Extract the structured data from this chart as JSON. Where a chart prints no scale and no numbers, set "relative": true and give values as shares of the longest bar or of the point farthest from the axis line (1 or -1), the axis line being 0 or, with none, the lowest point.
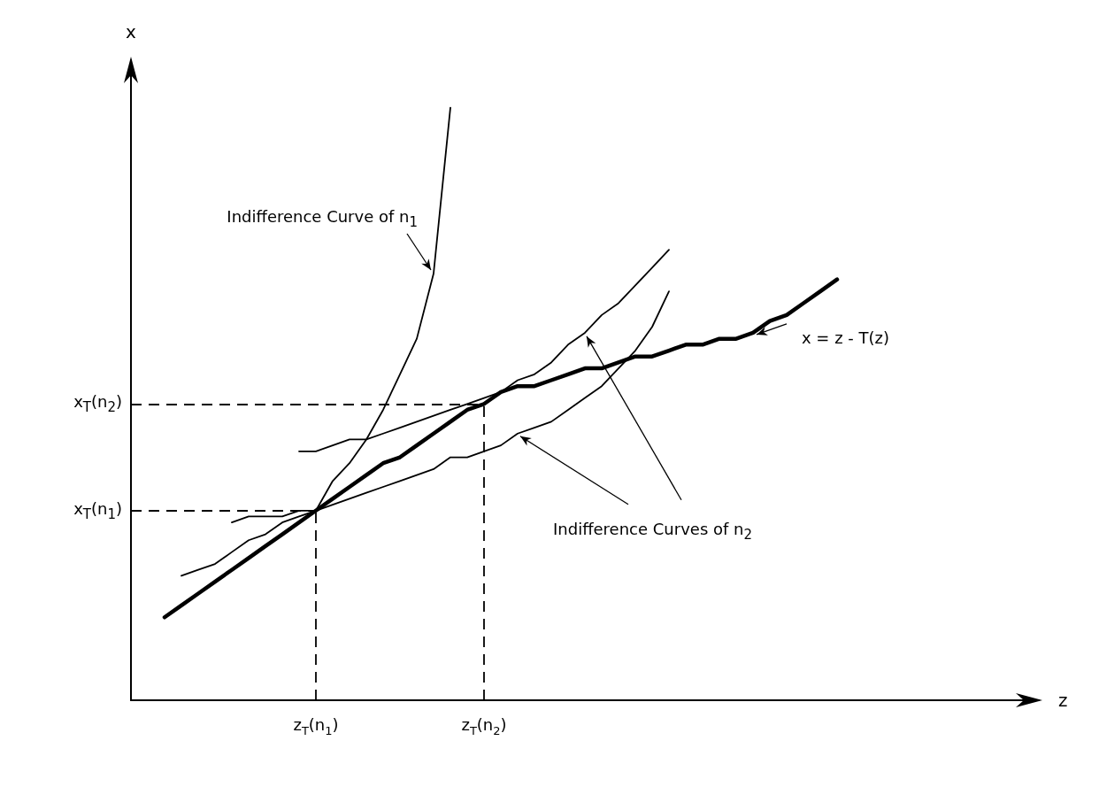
{
  "chart_data": {
    "type": "line",
    "relative": true,
    "xlabel": "z",
    "ylabel": "x",
    "marker": "none",
    "line_style": "solid",
    "categories": [
      null,
      null,
      null,
      null,
      null,
      null,
      null,
      null,
      null,
      null,
      null,
      "z$_{T}$(n$_{1}$)",
      null,
      null,
      null,
      null,
      null,
      null,
      null,
      null,
      null,
      "z$_{T}$(n$_{2}$)",
      null,
      null,
      null,
      null,
      null,
      null,
      null,
      null,
      null,
      null,
      null,
      null,
      null,
      null,
      null,
      null,
      null,
      null,
      null,
      null,
      null,
      null,
      null,
      null,
      null,
      null,
      null,
      null,
      null,
      null,
      null,
      null,
      null
    ],
    "series": [
      {
        "name": "x = z - T(z)",
        "color": "#000000",
        "values": [
          null,
          null,
          0.14,
          0.16,
          0.18,
          0.2,
          0.22,
          0.24,
          0.26,
          0.28,
          0.3,
          0.32,
          0.34,
          0.36,
          0.38,
          0.4,
          0.41,
          0.43,
          0.45,
          0.47,
          0.49,
          0.5,
          0.52,
          0.53,
          0.53,
          0.54,
          0.55,
          0.56,
          0.56,
          0.57,
          0.58,
          0.58,
          0.59,
          0.6,
          0.6,
          0.61,
          0.61,
          0.62,
          0.64,
          0.65,
          0.67,
          0.69,
          0.71,
          null,
          null,
          null,
          null,
          null,
          null,
          null,
          null,
          null,
          null,
          null,
          null
        ]
      },
      {
        "name": "Indifference Curve of n$_{1}$",
        "color": "#000000",
        "values": [
          null,
          null,
          null,
          0.21,
          0.22,
          0.23,
          0.25,
          0.27,
          0.28,
          0.3,
          0.31,
          0.32,
          0.37,
          0.4,
          0.44,
          0.49,
          0.55,
          0.61,
          0.72,
          1.0,
          null,
          null,
          null,
          null,
          null,
          null,
          null,
          null,
          null,
          null,
          null,
          null,
          null,
          null,
          null,
          null,
          null,
          null,
          null,
          null,
          null,
          null,
          null,
          null,
          null,
          null,
          null,
          null,
          null,
          null,
          null,
          null,
          null,
          null,
          null
        ]
      },
      {
        "color": "#000000",
        "values": [
          null,
          null,
          null,
          null,
          null,
          null,
          0.3,
          0.31,
          0.31,
          0.31,
          0.32,
          0.32,
          0.33,
          0.34,
          0.35,
          0.36,
          0.37,
          0.38,
          0.39,
          0.41,
          0.41,
          0.42,
          0.43,
          0.45,
          0.46,
          0.47,
          0.49,
          0.51,
          0.53,
          0.56,
          0.59,
          0.63,
          0.69,
          null,
          null,
          null,
          null,
          null,
          null,
          null,
          null,
          null,
          null,
          null,
          null,
          null,
          null,
          null,
          null,
          null,
          null,
          null,
          null,
          null,
          null
        ]
      },
      {
        "color": "#000000",
        "values": [
          null,
          null,
          null,
          null,
          null,
          null,
          null,
          null,
          null,
          null,
          0.42,
          0.42,
          0.43,
          0.44,
          0.44,
          0.45,
          0.46,
          0.47,
          0.48,
          0.49,
          0.5,
          0.51,
          0.52,
          0.54,
          0.55,
          0.57,
          0.6,
          0.62,
          0.65,
          0.67,
          0.7,
          0.73,
          0.76,
          null,
          null,
          null,
          null,
          null,
          null,
          null,
          null,
          null,
          null,
          null,
          null,
          null,
          null,
          null,
          null,
          null,
          null,
          null,
          null,
          null,
          null
        ]
      }
    ],
    "ref_lines": [
      {
        "axis": "y",
        "value": 0.32,
        "label": "x$_{T}$(n$_{1}$)",
        "line_style": "dashed"
      },
      {
        "axis": "y",
        "value": 0.5,
        "label": "x$_{T}$(n$_{2}$)",
        "line_style": "dashed"
      },
      {
        "axis": "x",
        "value": "z$_{T}$(n$_{1}$)",
        "label": null,
        "line_style": "dashed"
      },
      {
        "axis": "x",
        "value": "z$_{T}$(n$_{2}$)",
        "label": null,
        "line_style": "dashed"
      }
    ],
    "annotations": [
      "Indifference Curves of n$_{2}$"
    ]
  }
}
